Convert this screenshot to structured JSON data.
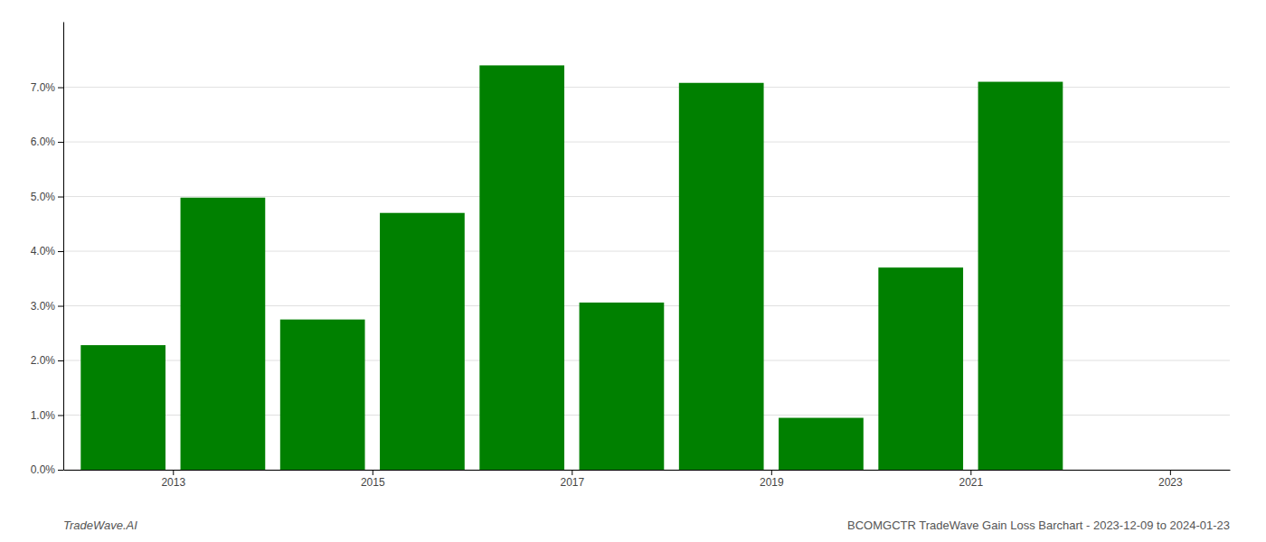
{
  "chart_data": {
    "type": "bar",
    "x": [
      2013,
      2014,
      2015,
      2016,
      2017,
      2018,
      2019,
      2020,
      2021,
      2022
    ],
    "values": [
      0.0228,
      0.0498,
      0.0275,
      0.047,
      0.074,
      0.0306,
      0.0708,
      0.0095,
      0.037,
      0.071
    ],
    "color": "#008000",
    "xlim": [
      2012.4,
      2024.1
    ],
    "xticks": [
      {
        "value": 2013.5,
        "label": "2013"
      },
      {
        "value": 2015.5,
        "label": "2015"
      },
      {
        "value": 2017.5,
        "label": "2017"
      },
      {
        "value": 2019.5,
        "label": "2019"
      },
      {
        "value": 2021.5,
        "label": "2021"
      },
      {
        "value": 2023.5,
        "label": "2023"
      }
    ],
    "ylim": [
      0,
      0.082
    ],
    "yticks": [
      {
        "value": 0.0,
        "label": "0.0%"
      },
      {
        "value": 0.01,
        "label": "1.0%"
      },
      {
        "value": 0.02,
        "label": "2.0%"
      },
      {
        "value": 0.03,
        "label": "3.0%"
      },
      {
        "value": 0.04,
        "label": "4.0%"
      },
      {
        "value": 0.05,
        "label": "5.0%"
      },
      {
        "value": 0.06,
        "label": "6.0%"
      },
      {
        "value": 0.07,
        "label": "7.0%"
      }
    ],
    "grid": true,
    "annotations": [
      "TradeWave.AI",
      "BCOMGCTR TradeWave Gain Loss Barchart - 2023-12-09 to 2024-01-23"
    ]
  }
}
